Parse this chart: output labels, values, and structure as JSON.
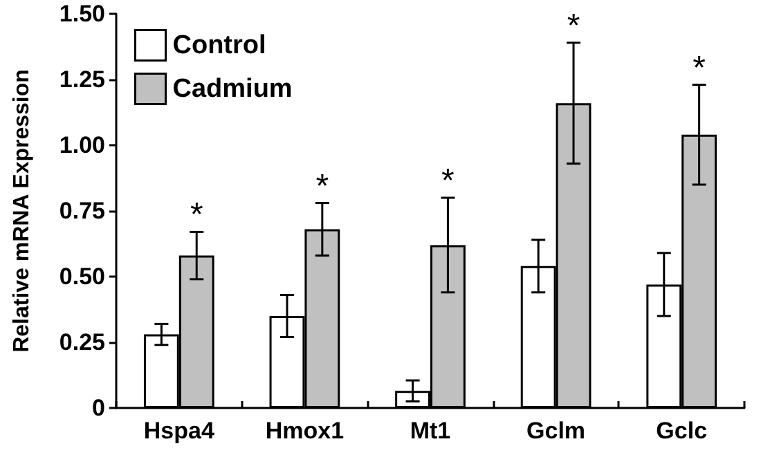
{
  "chart_data": {
    "type": "bar",
    "ylabel": "Relative mRNA Expression",
    "categories": [
      "Hspa4",
      "Hmox1",
      "Mt1",
      "Gclm",
      "Gclc"
    ],
    "series": [
      {
        "name": "Control",
        "color": "#ffffff",
        "values": [
          0.28,
          0.35,
          0.065,
          0.54,
          0.47
        ],
        "errors": [
          0.04,
          0.08,
          0.04,
          0.1,
          0.12
        ]
      },
      {
        "name": "Cadmium",
        "color": "#c0c0c0",
        "values": [
          0.58,
          0.68,
          0.62,
          1.16,
          1.04
        ],
        "errors": [
          0.09,
          0.1,
          0.18,
          0.23,
          0.19
        ]
      }
    ],
    "annotations": [
      "*",
      "*",
      "*",
      "*",
      "*"
    ],
    "ylim": [
      0,
      1.5
    ],
    "yticks": [
      {
        "value": 0,
        "label": "0"
      },
      {
        "value": 0.25,
        "label": "0.25"
      },
      {
        "value": 0.5,
        "label": "0.50"
      },
      {
        "value": 0.75,
        "label": "0.75"
      },
      {
        "value": 1,
        "label": "1.00"
      },
      {
        "value": 1.25,
        "label": "1.25"
      },
      {
        "value": 1.5,
        "label": "1.50"
      }
    ],
    "grid": false,
    "legend": "top left"
  }
}
